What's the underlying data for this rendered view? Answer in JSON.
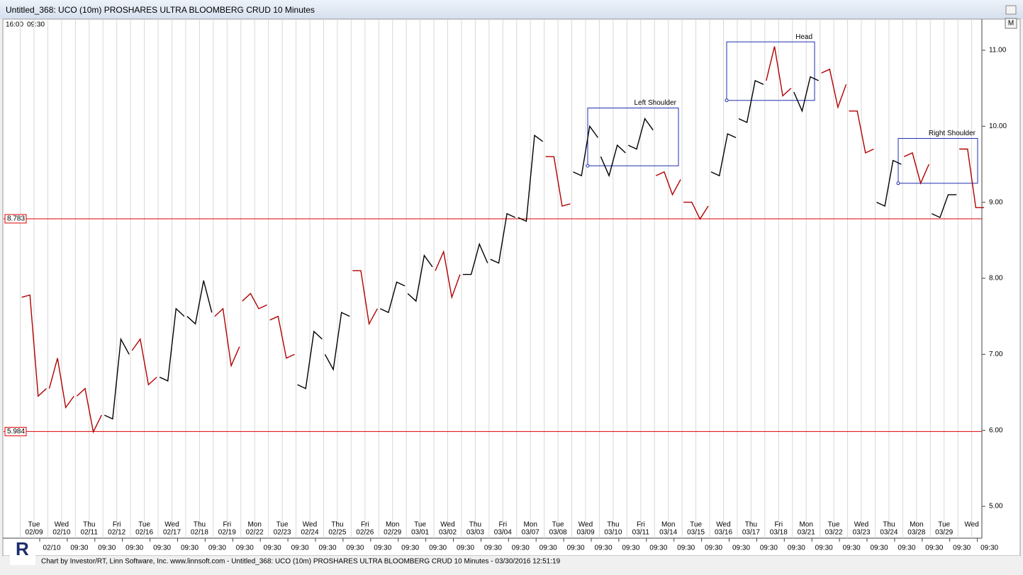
{
  "window_title": "Untitled_368: UCO (10m) PROSHARES ULTRA BLOOMBERG CRUD 10 Minutes",
  "footer": "Chart by Investor/RT, Linn Software, Inc. www.linnsoft.com - Untitled_368: UCO (10m) PROSHARES ULTRA BLOOMBERG CRUD 10 Minutes - 03/30/2016 12:51:19",
  "time_range_labels": [
    "16:00",
    "09:30"
  ],
  "menu_button": "M",
  "chart_data": {
    "type": "ohlc-line",
    "categories": [
      "02/09",
      "02/10",
      "02/11",
      "02/12",
      "02/16",
      "02/17",
      "02/18",
      "02/19",
      "02/22",
      "02/23",
      "02/24",
      "02/25",
      "02/26",
      "02/29",
      "03/01",
      "03/02",
      "03/03",
      "03/04",
      "03/07",
      "03/08",
      "03/09",
      "03/10",
      "03/11",
      "03/14",
      "03/15",
      "03/16",
      "03/17",
      "03/18",
      "03/21",
      "03/22",
      "03/23",
      "03/24",
      "03/28",
      "03/29",
      null
    ],
    "weekdays": [
      "Tue",
      "Wed",
      "Thu",
      "Fri",
      "Tue",
      "Wed",
      "Thu",
      "Fri",
      "Mon",
      "Tue",
      "Wed",
      "Thu",
      "Fri",
      "Mon",
      "Tue",
      "Wed",
      "Thu",
      "Fri",
      "Mon",
      "Tue",
      "Wed",
      "Thu",
      "Fri",
      "Mon",
      "Tue",
      "Wed",
      "Thu",
      "Fri",
      "Mon",
      "Tue",
      "Wed",
      "Thu",
      "Mon",
      "Tue",
      "Wed"
    ],
    "bottom_labels": [
      "02/10",
      "09:30",
      "09:30",
      "09:30",
      "09:30",
      "09:30",
      "09:30",
      "09:30",
      "09:30",
      "09:30",
      "09:30",
      "09:30",
      "09:30",
      "09:30",
      "09:30",
      "09:30",
      "09:30",
      "09:30",
      "09:30",
      "09:30",
      "09:30",
      "09:30",
      "09:30",
      "09:30",
      "09:30",
      "09:30",
      "09:30",
      "09:30",
      "09:30",
      "09:30",
      "09:30",
      "09:30",
      "09:30",
      "09:30",
      "09:30"
    ],
    "series": [
      {
        "name": "open",
        "values": [
          7.75,
          6.55,
          6.45,
          6.2,
          7.05,
          6.7,
          7.5,
          7.5,
          7.7,
          7.45,
          6.6,
          7.0,
          8.1,
          7.6,
          7.8,
          8.1,
          8.05,
          8.25,
          8.8,
          9.6,
          9.4,
          9.6,
          9.75,
          9.35,
          9.0,
          9.4,
          10.1,
          10.6,
          10.45,
          10.7,
          10.2,
          9.0,
          9.6,
          8.85,
          9.7
        ]
      },
      {
        "name": "high",
        "values": [
          7.78,
          6.95,
          6.55,
          7.2,
          7.2,
          7.6,
          7.97,
          7.6,
          7.8,
          7.5,
          7.3,
          7.55,
          8.1,
          7.95,
          8.3,
          8.35,
          8.45,
          8.85,
          9.88,
          9.6,
          10.0,
          9.75,
          10.1,
          9.4,
          9.0,
          9.9,
          10.6,
          11.05,
          10.65,
          10.75,
          10.2,
          9.55,
          9.65,
          9.1,
          9.7
        ]
      },
      {
        "name": "low",
        "values": [
          6.45,
          6.3,
          5.98,
          6.15,
          6.6,
          6.65,
          7.4,
          6.85,
          7.6,
          6.95,
          6.55,
          6.8,
          7.4,
          7.55,
          7.7,
          7.75,
          8.05,
          8.2,
          8.75,
          8.95,
          9.35,
          9.35,
          9.7,
          9.1,
          8.78,
          9.35,
          10.05,
          10.4,
          10.2,
          10.25,
          9.65,
          8.95,
          9.25,
          8.8,
          8.93
        ]
      },
      {
        "name": "close",
        "values": [
          6.55,
          6.45,
          6.2,
          7.0,
          6.7,
          7.5,
          7.55,
          7.1,
          7.65,
          7.0,
          7.2,
          7.5,
          7.6,
          7.9,
          8.15,
          8.05,
          8.2,
          8.8,
          9.8,
          8.98,
          9.85,
          9.65,
          9.95,
          9.3,
          8.95,
          9.85,
          10.55,
          10.5,
          10.6,
          10.55,
          9.7,
          9.5,
          9.5,
          9.1,
          8.93
        ]
      }
    ],
    "up_color": "#000000",
    "down_color": "#b00000",
    "ylim": [
      4.6,
      11.4
    ],
    "yticks": [
      {
        "value": 5,
        "label": "5.00"
      },
      {
        "value": 6,
        "label": "6.00"
      },
      {
        "value": 7,
        "label": "7.00"
      },
      {
        "value": 8,
        "label": "8.00"
      },
      {
        "value": 9,
        "label": "9.00"
      },
      {
        "value": 10,
        "label": "10.00"
      },
      {
        "value": 11,
        "label": "11.00"
      }
    ],
    "hlines": [
      8.783,
      5.984
    ],
    "hline_color": "#e00000",
    "annotations": [
      {
        "label": "Left Shoulder",
        "top": 10.24,
        "bottom": 9.48
      },
      {
        "label": "Head",
        "top": 11.11,
        "bottom": 10.34
      },
      {
        "label": "Right Shoulder",
        "top": 9.84,
        "bottom": 9.25
      }
    ],
    "annotation_color": "#1f2fb0",
    "grid": true
  }
}
